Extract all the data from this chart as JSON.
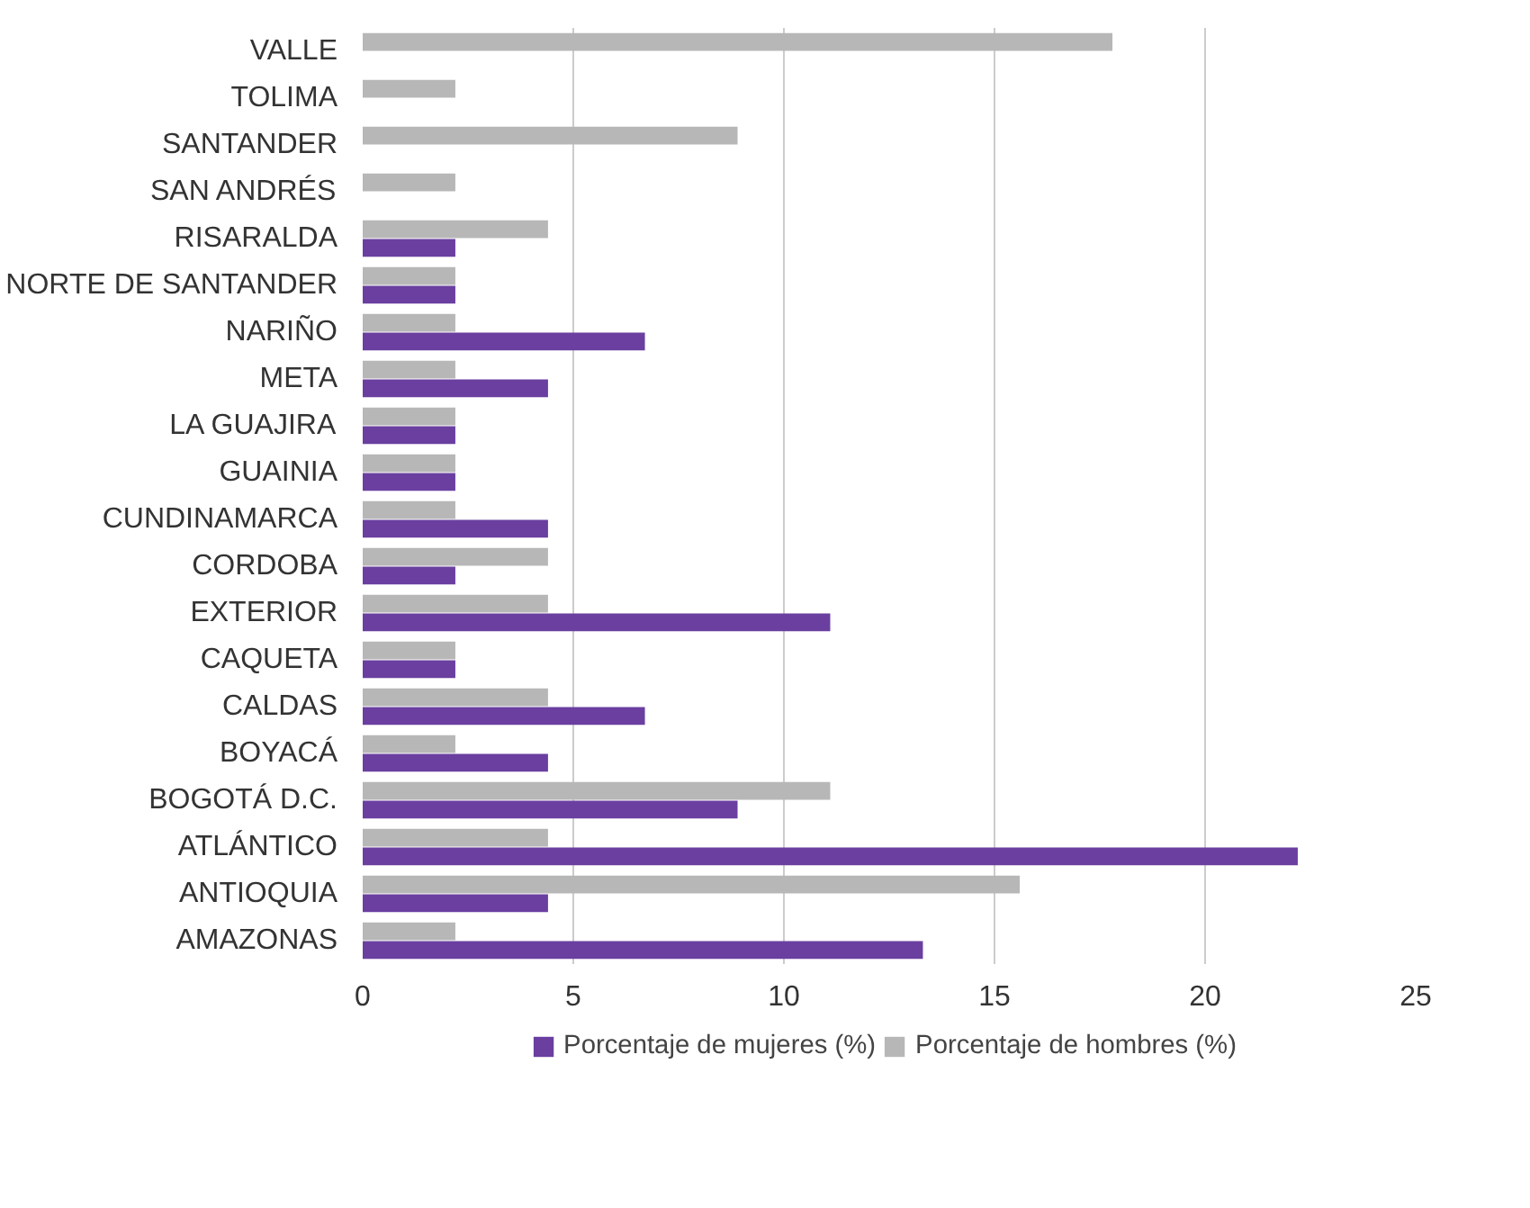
{
  "chart_data": {
    "type": "bar",
    "orientation": "horizontal",
    "categories": [
      "VALLE",
      "TOLIMA",
      "SANTANDER",
      "SAN ANDRÉS",
      "RISARALDA",
      "NORTE DE SANTANDER",
      "NARIÑO",
      "META",
      "LA GUAJIRA",
      "GUAINIA",
      "CUNDINAMARCA",
      "CORDOBA",
      "EXTERIOR",
      "CAQUETA",
      "CALDAS",
      "BOYACÁ",
      "BOGOTÁ D.C.",
      "ATLÁNTICO",
      "ANTIOQUIA",
      "AMAZONAS"
    ],
    "series": [
      {
        "name": "Porcentaje de mujeres (%)",
        "color": "#6a3fa0",
        "values": [
          null,
          null,
          null,
          null,
          2.2,
          2.2,
          6.7,
          4.4,
          2.2,
          2.2,
          4.4,
          2.2,
          11.1,
          2.2,
          6.7,
          4.4,
          8.9,
          22.2,
          4.4,
          13.3
        ]
      },
      {
        "name": "Porcentaje de hombres (%)",
        "color": "#b7b7b7",
        "values": [
          17.8,
          2.2,
          8.9,
          2.2,
          4.4,
          2.2,
          2.2,
          2.2,
          2.2,
          2.2,
          2.2,
          4.4,
          4.4,
          2.2,
          4.4,
          2.2,
          11.1,
          4.4,
          15.6,
          2.2
        ]
      }
    ],
    "xlim": [
      0,
      25
    ],
    "xticks": [
      0,
      5,
      10,
      15,
      20,
      25
    ],
    "grid": "x",
    "legend": "bottom"
  }
}
